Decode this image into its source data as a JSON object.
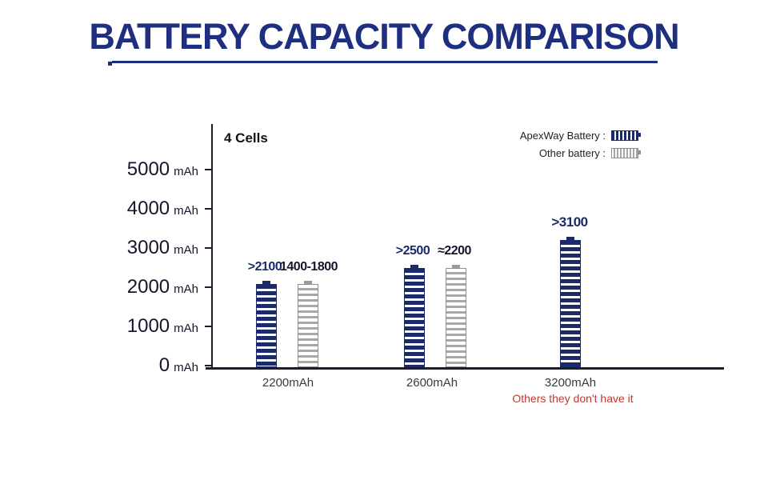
{
  "title": {
    "text": "BATTERY CAPACITY COMPARISON"
  },
  "colors": {
    "title_blue": "#1e2f80",
    "navy": "#1b2a6b",
    "gray": "#a8a8a8",
    "red": "#bf3a32"
  },
  "chart": {
    "cells_label": "4 Cells",
    "unit": "mAh",
    "y_ticks": [
      "5000",
      "4000",
      "3000",
      "2000",
      "1000",
      "0"
    ],
    "legend": {
      "apexway_label": "ApexWay Battery :",
      "other_label": "Other battery :"
    }
  },
  "chart_data": {
    "type": "bar",
    "title": "BATTERY CAPACITY COMPARISON",
    "subtitle": "4 Cells",
    "ylabel": "mAh",
    "ylim": [
      0,
      5000
    ],
    "grid": false,
    "legend_position": "top-right",
    "categories": [
      "2200mAh",
      "2600mAh",
      "3200mAh"
    ],
    "series": [
      {
        "name": "ApexWay Battery",
        "values": [
          2100,
          2500,
          3200
        ],
        "labels": [
          ">2100",
          ">2500",
          ">3100"
        ]
      },
      {
        "name": "Other battery",
        "values": [
          2100,
          2500,
          null
        ],
        "labels": [
          "1400-1800",
          "≈2200",
          null
        ]
      }
    ],
    "annotations": [
      "Others they don't have it"
    ]
  }
}
